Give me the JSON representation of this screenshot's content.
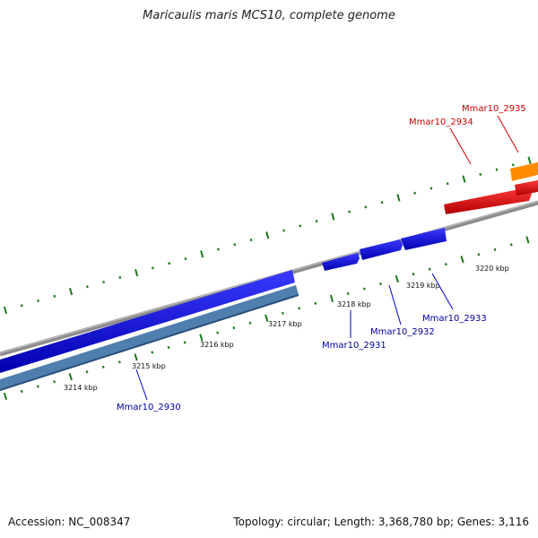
{
  "title": "Maricaulis maris MCS10, complete genome",
  "footer": {
    "accession": "Accession: NC_008347",
    "summary": "Topology: circular; Length: 3,368,780 bp; Genes: 3,116"
  },
  "colors": {
    "backbone": "#8c8c8c",
    "tick": "#1a7a1a",
    "forward_gene": "#e80000",
    "forward_gene_alt": "#ff8c00",
    "reverse_gene": "#0000e8",
    "reverse_gene_alt": "#4f7fae",
    "forward_label": "#cc0000",
    "reverse_label": "#00009c"
  },
  "ticks": [
    {
      "label": "3214 kbp"
    },
    {
      "label": "3215 kbp"
    },
    {
      "label": "3216 kbp"
    },
    {
      "label": "3217 kbp"
    },
    {
      "label": "3218 kbp"
    },
    {
      "label": "3219 kbp"
    },
    {
      "label": "3220 kbp"
    }
  ],
  "genes": [
    {
      "name": "Mmar10_2930",
      "strand": "reverse"
    },
    {
      "name": "Mmar10_2931",
      "strand": "reverse"
    },
    {
      "name": "Mmar10_2932",
      "strand": "reverse"
    },
    {
      "name": "Mmar10_2933",
      "strand": "reverse"
    },
    {
      "name": "Mmar10_2934",
      "strand": "forward"
    },
    {
      "name": "Mmar10_2935",
      "strand": "forward"
    }
  ]
}
